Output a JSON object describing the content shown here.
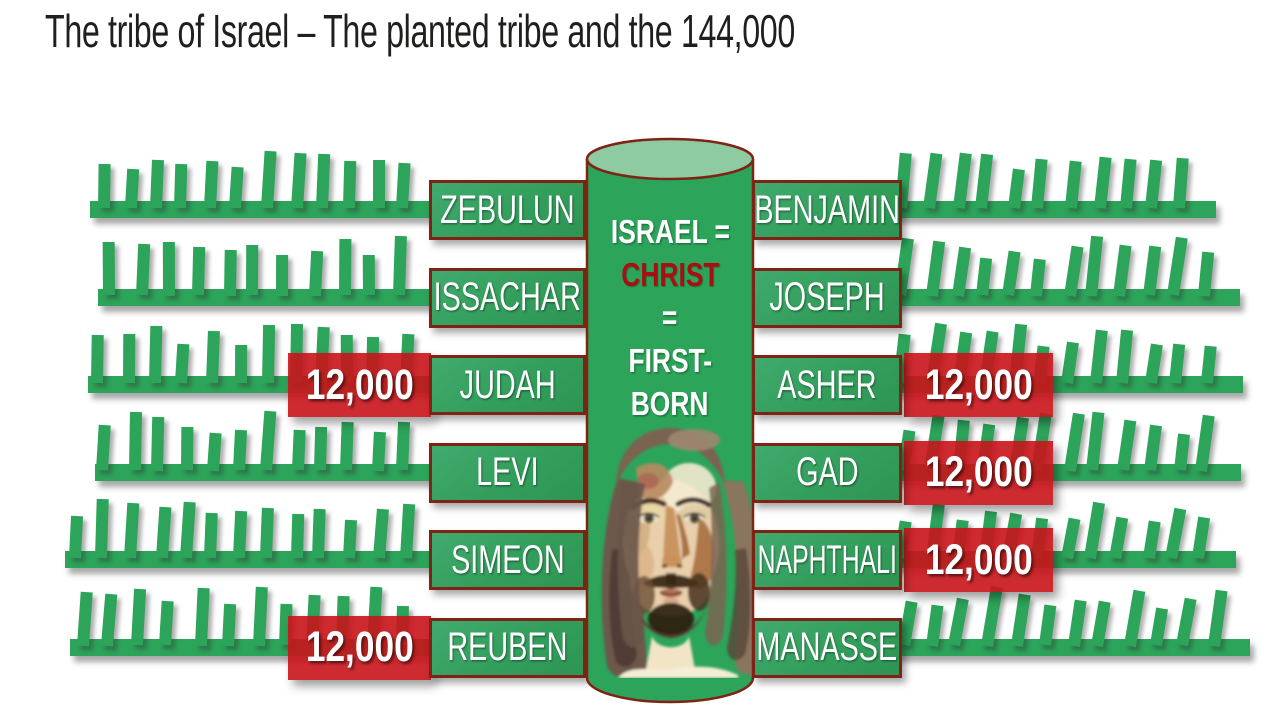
{
  "title": "The tribe of Israel – The planted tribe and the 144,000",
  "cylinder": {
    "lines": [
      {
        "text": "ISRAEL =",
        "color": "white"
      },
      {
        "text": "CHRIST",
        "color": "red"
      },
      {
        "text": "=",
        "color": "white"
      },
      {
        "text": "FIRST-",
        "color": "white"
      },
      {
        "text": "BORN",
        "color": "white"
      }
    ],
    "portrait": "jesus-face-watercolor"
  },
  "rows": [
    {
      "left": {
        "tribe": "ZEBULUN"
      },
      "right": {
        "tribe": "BENJAMIN"
      }
    },
    {
      "left": {
        "tribe": "ISSACHAR"
      },
      "right": {
        "tribe": "JOSEPH"
      }
    },
    {
      "left": {
        "tribe": "JUDAH",
        "count": "12,000"
      },
      "right": {
        "tribe": "ASHER",
        "count": "12,000"
      }
    },
    {
      "left": {
        "tribe": "LEVI"
      },
      "right": {
        "tribe": "GAD",
        "count": "12,000"
      }
    },
    {
      "left": {
        "tribe": "SIMEON"
      },
      "right": {
        "tribe": "NAPHTHALI",
        "count": "12,000"
      }
    },
    {
      "left": {
        "tribe": "REUBEN",
        "count": "12,000"
      },
      "right": {
        "tribe": "MANASSE"
      }
    }
  ],
  "colors": {
    "green": "#2ca45a",
    "box_green": "#339e5c",
    "maroon_border": "#7e2315",
    "red_badge": "#c81419",
    "christ_red": "#a90e12",
    "cylinder_top": "#8ecaa2",
    "title_text": "#1f1f1e"
  }
}
